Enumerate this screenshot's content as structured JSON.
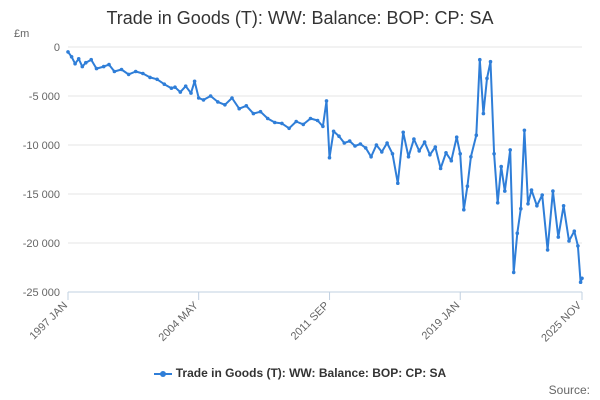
{
  "chart_data": {
    "type": "line",
    "title": "Trade in Goods (T): WW: Balance: BOP: CP: SA",
    "ylabel": "£m",
    "xlabel": "",
    "ylim": [
      -25000,
      0
    ],
    "y_ticks": [
      "0",
      "-5 000",
      "-10 000",
      "-15 000",
      "-20 000",
      "-25 000"
    ],
    "y_tick_values": [
      0,
      -5000,
      -10000,
      -15000,
      -20000,
      -25000
    ],
    "x_tick_labels": [
      "1997 JAN",
      "2004 MAY",
      "2011 SEP",
      "2019 JAN",
      "2025 NOV"
    ],
    "x_tick_values": [
      1997.0,
      2004.33,
      2011.67,
      2019.0,
      2025.83
    ],
    "xlim": [
      1997.0,
      2025.83
    ],
    "grid": true,
    "legend_position": "bottom",
    "series": [
      {
        "name": "Trade in Goods (T): WW: Balance: BOP: CP: SA",
        "color": "#2f7ed8",
        "points": [
          [
            1997.0,
            -500
          ],
          [
            1997.2,
            -1000
          ],
          [
            1997.4,
            -1700
          ],
          [
            1997.6,
            -1200
          ],
          [
            1997.8,
            -2000
          ],
          [
            1998.0,
            -1600
          ],
          [
            1998.3,
            -1300
          ],
          [
            1998.6,
            -2200
          ],
          [
            1999.0,
            -2000
          ],
          [
            1999.3,
            -1800
          ],
          [
            1999.6,
            -2500
          ],
          [
            2000.0,
            -2300
          ],
          [
            2000.4,
            -2800
          ],
          [
            2000.8,
            -2500
          ],
          [
            2001.2,
            -2700
          ],
          [
            2001.6,
            -3100
          ],
          [
            2002.0,
            -3300
          ],
          [
            2002.4,
            -3800
          ],
          [
            2002.8,
            -4200
          ],
          [
            2003.0,
            -4100
          ],
          [
            2003.3,
            -4600
          ],
          [
            2003.6,
            -4000
          ],
          [
            2003.9,
            -4700
          ],
          [
            2004.1,
            -3500
          ],
          [
            2004.33,
            -5200
          ],
          [
            2004.6,
            -5400
          ],
          [
            2005.0,
            -5000
          ],
          [
            2005.4,
            -5600
          ],
          [
            2005.8,
            -5900
          ],
          [
            2006.2,
            -5200
          ],
          [
            2006.6,
            -6300
          ],
          [
            2007.0,
            -6000
          ],
          [
            2007.4,
            -6800
          ],
          [
            2007.8,
            -6600
          ],
          [
            2008.2,
            -7300
          ],
          [
            2008.6,
            -7700
          ],
          [
            2009.0,
            -7800
          ],
          [
            2009.4,
            -8300
          ],
          [
            2009.8,
            -7600
          ],
          [
            2010.2,
            -7900
          ],
          [
            2010.6,
            -7300
          ],
          [
            2011.0,
            -7500
          ],
          [
            2011.3,
            -8100
          ],
          [
            2011.5,
            -5500
          ],
          [
            2011.67,
            -11300
          ],
          [
            2011.9,
            -8600
          ],
          [
            2012.2,
            -9100
          ],
          [
            2012.5,
            -9800
          ],
          [
            2012.8,
            -9600
          ],
          [
            2013.1,
            -10100
          ],
          [
            2013.4,
            -9900
          ],
          [
            2013.7,
            -10300
          ],
          [
            2014.0,
            -11200
          ],
          [
            2014.3,
            -10000
          ],
          [
            2014.6,
            -10700
          ],
          [
            2014.9,
            -9800
          ],
          [
            2015.2,
            -10900
          ],
          [
            2015.5,
            -13900
          ],
          [
            2015.8,
            -8700
          ],
          [
            2016.1,
            -11200
          ],
          [
            2016.4,
            -9400
          ],
          [
            2016.7,
            -10600
          ],
          [
            2017.0,
            -9700
          ],
          [
            2017.3,
            -11000
          ],
          [
            2017.6,
            -10200
          ],
          [
            2017.9,
            -12400
          ],
          [
            2018.2,
            -10800
          ],
          [
            2018.5,
            -11600
          ],
          [
            2018.8,
            -9200
          ],
          [
            2019.0,
            -10900
          ],
          [
            2019.2,
            -16600
          ],
          [
            2019.4,
            -14200
          ],
          [
            2019.6,
            -11200
          ],
          [
            2019.9,
            -9000
          ],
          [
            2020.1,
            -1300
          ],
          [
            2020.3,
            -6800
          ],
          [
            2020.5,
            -3200
          ],
          [
            2020.7,
            -1500
          ],
          [
            2020.9,
            -10900
          ],
          [
            2021.1,
            -15900
          ],
          [
            2021.3,
            -12200
          ],
          [
            2021.5,
            -14700
          ],
          [
            2021.8,
            -10500
          ],
          [
            2022.0,
            -23000
          ],
          [
            2022.2,
            -19000
          ],
          [
            2022.4,
            -16500
          ],
          [
            2022.6,
            -8500
          ],
          [
            2022.8,
            -16000
          ],
          [
            2023.0,
            -14600
          ],
          [
            2023.3,
            -16200
          ],
          [
            2023.6,
            -15100
          ],
          [
            2023.9,
            -20700
          ],
          [
            2024.2,
            -14700
          ],
          [
            2024.5,
            -19400
          ],
          [
            2024.8,
            -16200
          ],
          [
            2025.1,
            -19800
          ],
          [
            2025.4,
            -18800
          ],
          [
            2025.6,
            -20300
          ],
          [
            2025.75,
            -24000
          ],
          [
            2025.83,
            -23600
          ]
        ]
      }
    ],
    "source_label": "Source:"
  }
}
